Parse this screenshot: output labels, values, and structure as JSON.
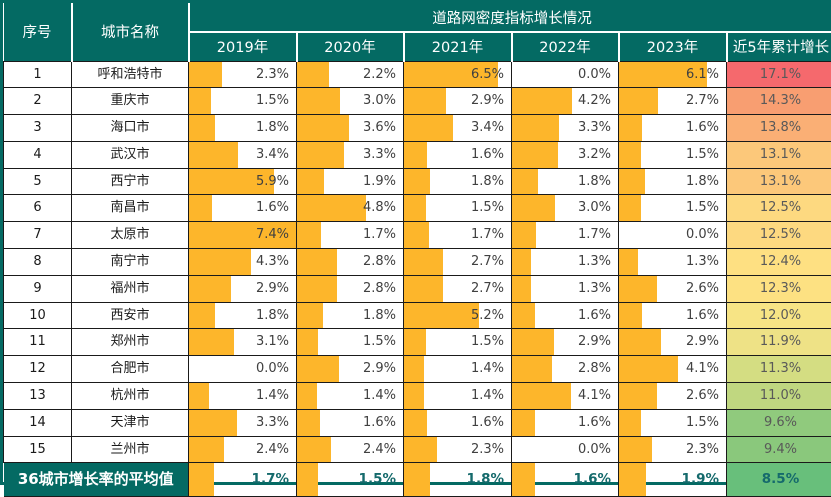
{
  "headers": {
    "no": "序号",
    "city": "城市名称",
    "group": "道路网密度指标增长情况",
    "years": [
      "2019年",
      "2020年",
      "2021年",
      "2022年",
      "2023年"
    ],
    "cumulative": "近5年累计增长"
  },
  "colors": {
    "header_bg": "#046a63",
    "bar": "#fdb62b",
    "value_text": "#404040",
    "cumulative_text": "#595959",
    "footer_value_text": "#156a6c"
  },
  "chart_data": {
    "type": "table",
    "title": "道路网密度指标增长情况",
    "columns": [
      "序号",
      "城市名称",
      "2019年",
      "2020年",
      "2021年",
      "2022年",
      "2023年",
      "近5年累计增长"
    ],
    "unit": "percent",
    "bar_scale_max": 7.4,
    "conditional_formatting": {
      "growth_columns": "orange data bars, length = value / 7.4 of cell width",
      "cumulative_column": "red-yellow-green color scale from 17.1 (red) to 8.5 (green)"
    },
    "rows": [
      {
        "no": "1",
        "city": "呼和浩特市",
        "growth": [
          2.3,
          2.2,
          6.5,
          0.0,
          6.1
        ],
        "cumulative": 17.1,
        "cum_bg": "#f5696d"
      },
      {
        "no": "2",
        "city": "重庆市",
        "growth": [
          1.5,
          3.0,
          2.9,
          4.2,
          2.7
        ],
        "cumulative": 14.3,
        "cum_bg": "#f89e71"
      },
      {
        "no": "3",
        "city": "海口市",
        "growth": [
          1.8,
          3.6,
          3.4,
          3.3,
          1.6
        ],
        "cumulative": 13.8,
        "cum_bg": "#faaf75"
      },
      {
        "no": "4",
        "city": "武汉市",
        "growth": [
          3.4,
          3.3,
          1.6,
          3.2,
          1.5
        ],
        "cumulative": 13.1,
        "cum_bg": "#fcc87a"
      },
      {
        "no": "5",
        "city": "西宁市",
        "growth": [
          5.9,
          1.9,
          1.8,
          1.8,
          1.8
        ],
        "cumulative": 13.1,
        "cum_bg": "#fcc87a"
      },
      {
        "no": "6",
        "city": "南昌市",
        "growth": [
          1.6,
          4.8,
          1.5,
          3.0,
          1.5
        ],
        "cumulative": 12.5,
        "cum_bg": "#fdd980"
      },
      {
        "no": "7",
        "city": "太原市",
        "growth": [
          7.4,
          1.7,
          1.7,
          1.7,
          0.0
        ],
        "cumulative": 12.5,
        "cum_bg": "#fdd980"
      },
      {
        "no": "8",
        "city": "南宁市",
        "growth": [
          4.3,
          2.8,
          2.7,
          1.3,
          1.3
        ],
        "cumulative": 12.4,
        "cum_bg": "#fee082"
      },
      {
        "no": "9",
        "city": "福州市",
        "growth": [
          2.9,
          2.8,
          2.7,
          1.3,
          2.6
        ],
        "cumulative": 12.3,
        "cum_bg": "#fde182"
      },
      {
        "no": "10",
        "city": "西安市",
        "growth": [
          1.8,
          1.8,
          5.2,
          1.6,
          1.6
        ],
        "cumulative": 12.0,
        "cum_bg": "#f7e485"
      },
      {
        "no": "11",
        "city": "郑州市",
        "growth": [
          3.1,
          1.5,
          1.5,
          2.9,
          2.9
        ],
        "cumulative": 11.9,
        "cum_bg": "#eee286"
      },
      {
        "no": "12",
        "city": "合肥市",
        "growth": [
          0.0,
          2.9,
          1.4,
          2.8,
          4.1
        ],
        "cumulative": 11.3,
        "cum_bg": "#d4dd82"
      },
      {
        "no": "13",
        "city": "杭州市",
        "growth": [
          1.4,
          1.4,
          1.4,
          4.1,
          2.6
        ],
        "cumulative": 11.0,
        "cum_bg": "#c0d780"
      },
      {
        "no": "14",
        "city": "天津市",
        "growth": [
          3.3,
          1.6,
          1.6,
          1.6,
          1.5
        ],
        "cumulative": 9.6,
        "cum_bg": "#90ca7d"
      },
      {
        "no": "15",
        "city": "兰州市",
        "growth": [
          2.4,
          2.4,
          2.3,
          0.0,
          2.3
        ],
        "cumulative": 9.4,
        "cum_bg": "#8ac87c"
      }
    ],
    "footer": {
      "label": "36城市增长率的平均值",
      "growth": [
        1.7,
        1.5,
        1.8,
        1.6,
        1.9
      ],
      "cumulative": 8.5,
      "cum_bg": "#68bf7b"
    }
  }
}
